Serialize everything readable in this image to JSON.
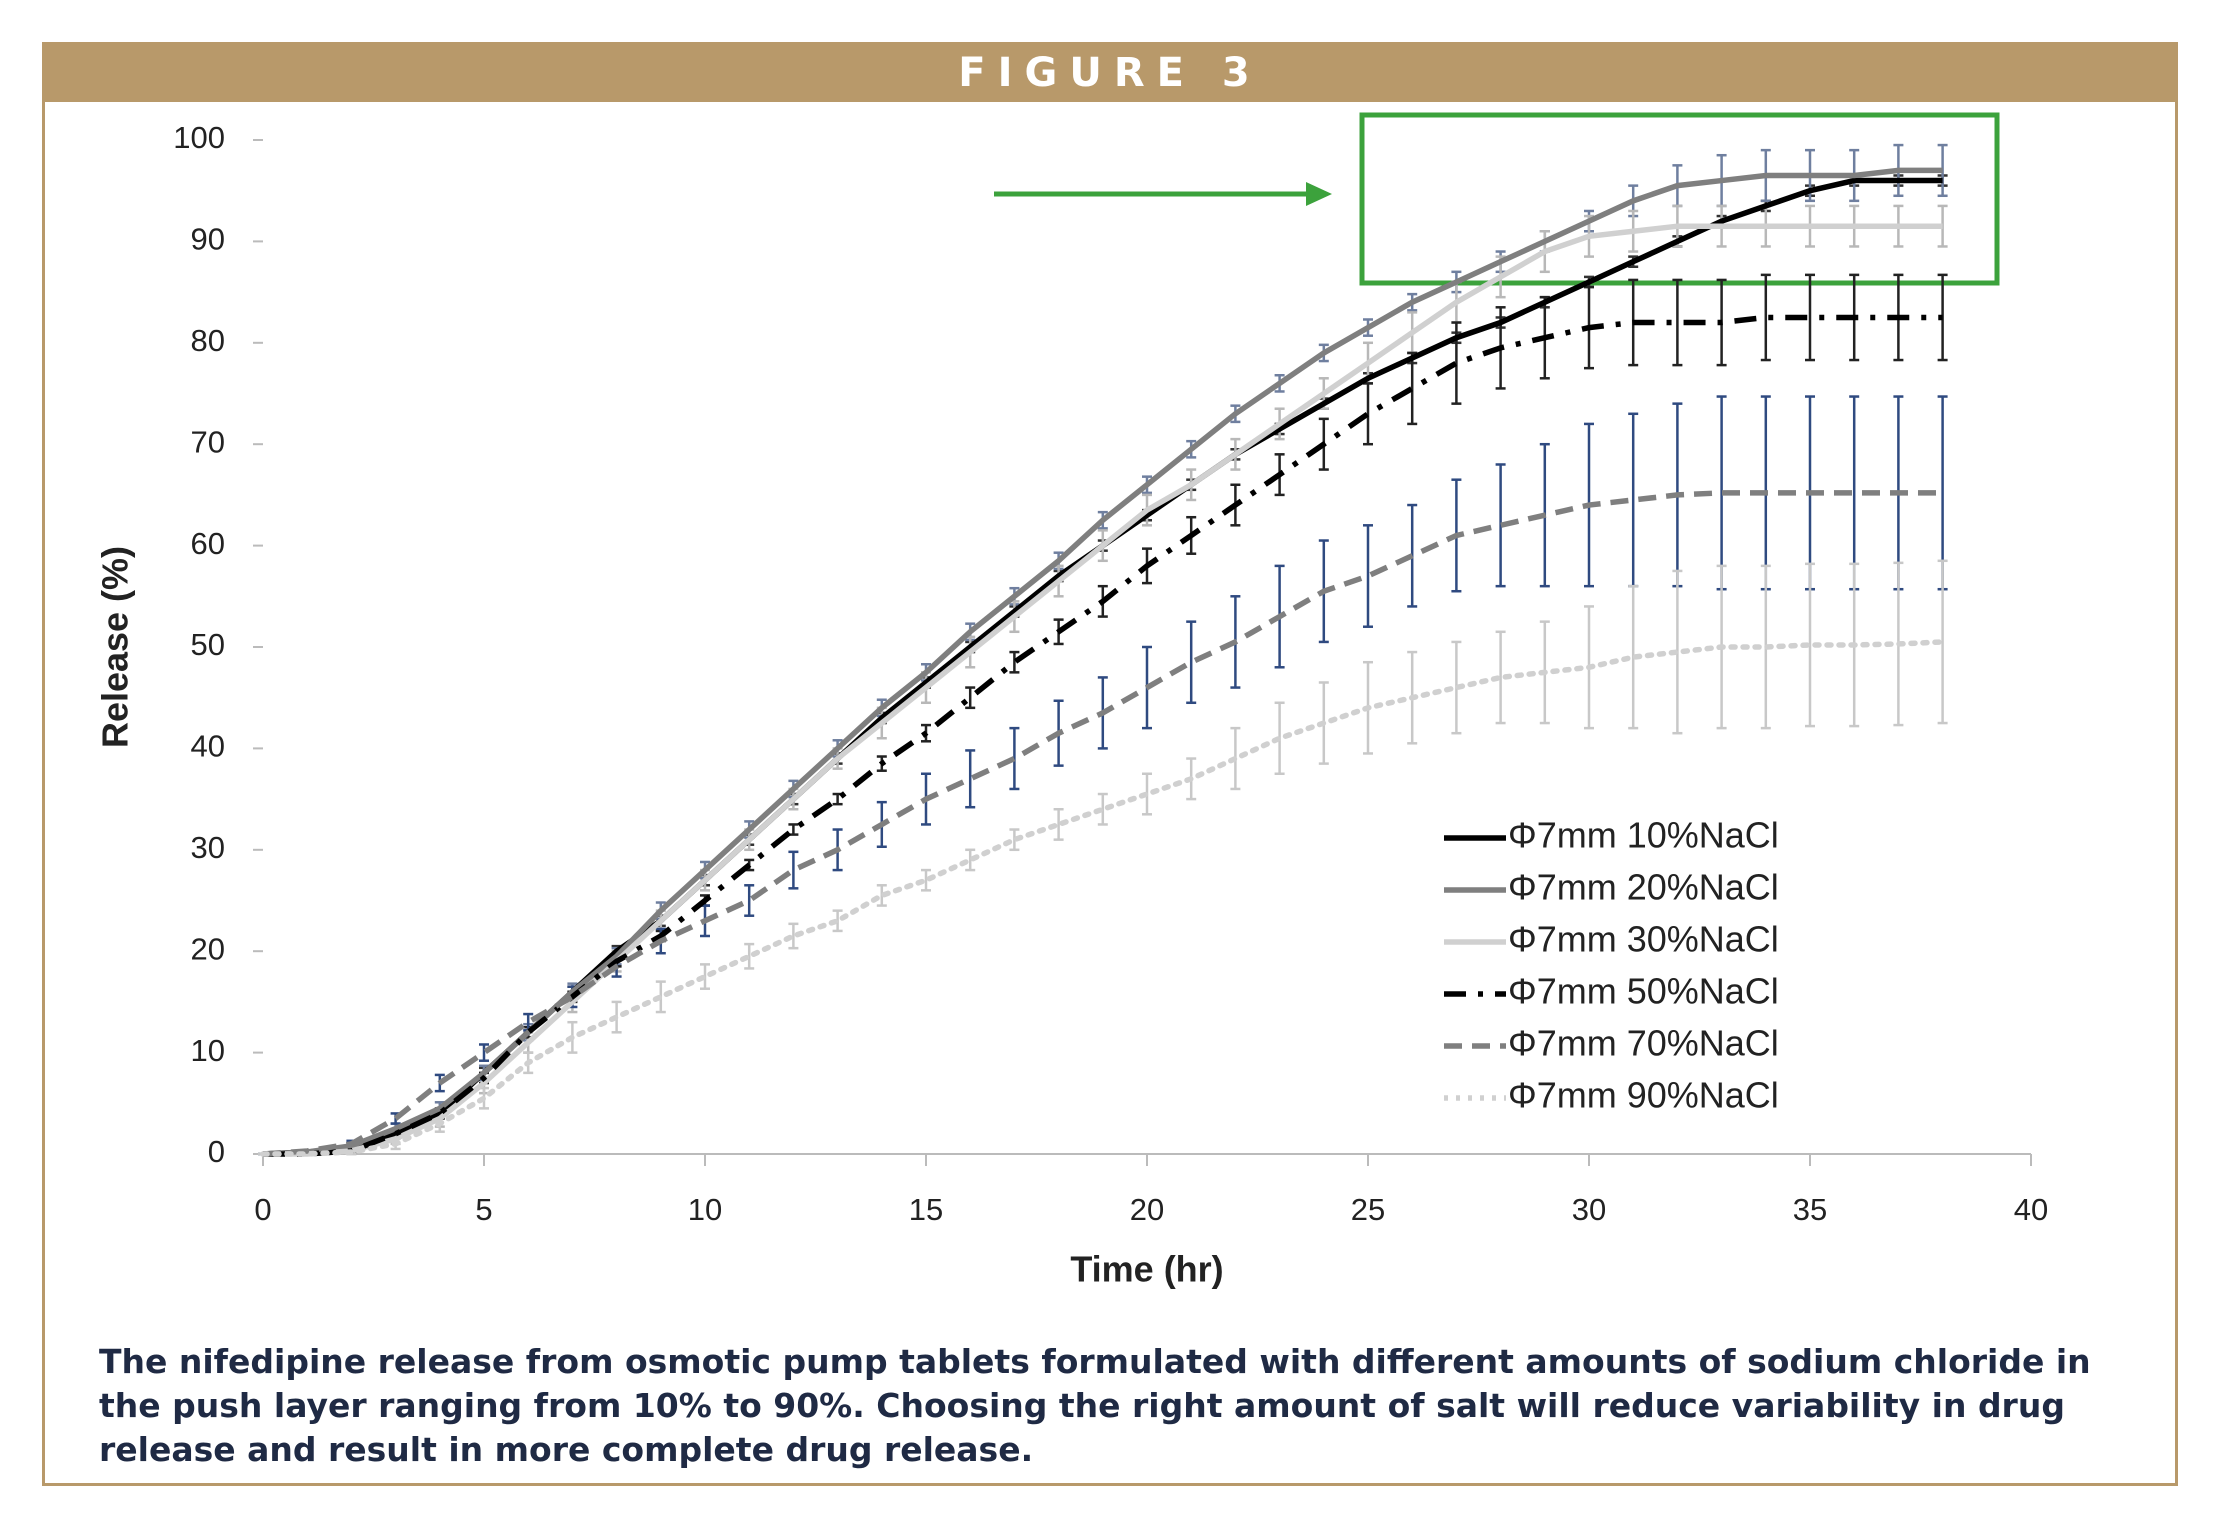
{
  "figure_label": "FIGURE 3",
  "caption": "The nifedipine release from osmotic pump tablets formulated with different amounts of sodium chloride in the push layer ranging from 10% to 90%. Choosing the right amount of salt will reduce variability in drug release and result in more complete drug release.",
  "chart_data": {
    "type": "line",
    "x_label": "Time (hr)",
    "y_label": "Release (%)",
    "x": [
      0,
      1,
      2,
      3,
      4,
      5,
      6,
      7,
      8,
      9,
      10,
      11,
      12,
      13,
      14,
      15,
      16,
      17,
      18,
      19,
      20,
      21,
      22,
      23,
      24,
      25,
      26,
      27,
      28,
      29,
      30,
      31,
      32,
      33,
      34,
      35,
      36,
      37,
      38
    ],
    "xlim": [
      0,
      40
    ],
    "xticks": [
      0,
      5,
      10,
      15,
      20,
      25,
      30,
      35,
      40
    ],
    "ylim": [
      0,
      100
    ],
    "yticks": [
      0,
      10,
      20,
      30,
      40,
      50,
      60,
      70,
      80,
      90,
      100
    ],
    "grid": false,
    "legend": "lower right",
    "series": [
      {
        "name": "Φ7mm 10%NaCl",
        "color": "#000000",
        "error_color": "#333333",
        "dash": "solid",
        "values": [
          0,
          0.2,
          0.5,
          2,
          4,
          8,
          12,
          16,
          20,
          23,
          27,
          31,
          35,
          39,
          43,
          46.5,
          50,
          53.5,
          57,
          60,
          63,
          66,
          69,
          71.5,
          74,
          76.5,
          78.5,
          80.5,
          82,
          84,
          86,
          88,
          90,
          92,
          93.5,
          95,
          96,
          96,
          96
        ],
        "errors": [
          0,
          0,
          0.2,
          0.3,
          0.4,
          0.5,
          0.5,
          0.5,
          0.5,
          0.5,
          0.5,
          0.5,
          0.5,
          0.5,
          0.5,
          0.5,
          0.5,
          0.5,
          0.5,
          0.5,
          0.5,
          0.5,
          0.5,
          0.5,
          0.5,
          0.5,
          0.5,
          0.5,
          0.5,
          0.5,
          0.5,
          0.5,
          0.5,
          0.5,
          0.5,
          0.5,
          0.5,
          0.5,
          0.5
        ]
      },
      {
        "name": "Φ7mm 20%NaCl",
        "color": "#7f7f7f",
        "error_color": "#6f7f9f",
        "dash": "solid",
        "values": [
          0,
          0.2,
          0.8,
          2.5,
          4.5,
          8,
          12,
          16,
          19.5,
          24,
          28,
          32,
          36,
          40,
          44,
          47.5,
          51.5,
          55,
          58.5,
          62.5,
          66,
          69.5,
          73,
          76,
          79,
          81.5,
          84,
          86,
          88,
          90,
          92,
          94,
          95.5,
          96,
          96.5,
          96.5,
          96.5,
          97,
          97
        ],
        "errors": [
          0,
          0,
          0.3,
          0.5,
          0.6,
          0.7,
          0.8,
          0.8,
          0.8,
          0.8,
          0.8,
          0.8,
          0.8,
          0.8,
          0.8,
          0.8,
          0.8,
          0.8,
          0.8,
          0.8,
          0.8,
          0.8,
          0.8,
          0.8,
          0.8,
          0.8,
          0.8,
          1,
          1,
          1,
          1,
          1.5,
          2,
          2.5,
          2.5,
          2.5,
          2.5,
          2.5,
          2.5
        ]
      },
      {
        "name": "Φ7mm 30%NaCl",
        "color": "#d0d0d0",
        "error_color": "#b8b8b8",
        "dash": "solid",
        "values": [
          0,
          0,
          0.3,
          1.5,
          3.5,
          7,
          11,
          15,
          19,
          23,
          27,
          31,
          35,
          39,
          42.5,
          46,
          49.5,
          53,
          56.5,
          60,
          63.5,
          66,
          69,
          72,
          75,
          78,
          81,
          84,
          86.5,
          89,
          90.5,
          91,
          91.5,
          91.5,
          91.5,
          91.5,
          91.5,
          91.5,
          91.5
        ],
        "errors": [
          0,
          0,
          0.3,
          0.5,
          0.8,
          1,
          1,
          1,
          1,
          1,
          1,
          1,
          1,
          1,
          1.5,
          1.5,
          1.5,
          1.5,
          1.5,
          1.5,
          1.5,
          1.5,
          1.5,
          1.5,
          1.5,
          2,
          2,
          2,
          2,
          2,
          2,
          2,
          2,
          2,
          2,
          2,
          2,
          2,
          2
        ]
      },
      {
        "name": "Φ7mm 50%NaCl",
        "color": "#000000",
        "error_color": "#222222",
        "dash": "dashdot",
        "values": [
          0,
          0,
          0.3,
          2,
          4,
          7.5,
          12,
          15.5,
          19,
          21.5,
          25,
          28.5,
          32,
          35,
          38.5,
          41.5,
          45,
          48.5,
          51.5,
          54.5,
          58,
          61,
          64,
          67,
          70,
          73,
          75.5,
          78,
          79.5,
          80.5,
          81.5,
          82,
          82,
          82,
          82.5,
          82.5,
          82.5,
          82.5,
          82.5
        ],
        "errors": [
          0,
          0,
          0.2,
          0.3,
          0.5,
          0.5,
          0.5,
          0.5,
          0.5,
          0.5,
          0.5,
          0.5,
          0.5,
          0.5,
          0.7,
          0.8,
          1,
          1,
          1.2,
          1.5,
          1.7,
          1.8,
          2,
          2,
          2.5,
          3,
          3.5,
          4,
          4,
          4,
          4,
          4.2,
          4.2,
          4.2,
          4.2,
          4.2,
          4.2,
          4.2,
          4.2
        ]
      },
      {
        "name": "Φ7mm 70%NaCl",
        "color": "#7f7f7f",
        "error_color": "#2f4a80",
        "dash": "dashed",
        "values": [
          0,
          0.3,
          1,
          3.5,
          7,
          10,
          13,
          15.5,
          18.5,
          21,
          23,
          25,
          28,
          30,
          32.5,
          35,
          37,
          39,
          41.5,
          43.5,
          46,
          48.5,
          50.5,
          53,
          55.5,
          57,
          59,
          61,
          62,
          63,
          64,
          64.5,
          65,
          65.2,
          65.2,
          65.2,
          65.2,
          65.2,
          65.2
        ],
        "errors": [
          0,
          0,
          0.3,
          0.5,
          0.8,
          0.8,
          0.8,
          1,
          1,
          1.2,
          1.5,
          1.5,
          1.8,
          2,
          2.2,
          2.5,
          2.8,
          3,
          3.2,
          3.5,
          4,
          4,
          4.5,
          5,
          5,
          5,
          5,
          5.5,
          6,
          7,
          8,
          8.5,
          9,
          9.5,
          9.5,
          9.5,
          9.5,
          9.5,
          9.5
        ]
      },
      {
        "name": "Φ7mm 90%NaCl",
        "color": "#d0d0d0",
        "error_color": "#c8c8c8",
        "dash": "dotted",
        "values": [
          0,
          0,
          0.2,
          1,
          3,
          5.5,
          9,
          11.5,
          13.5,
          15.5,
          17.5,
          19.5,
          21.5,
          23,
          25.5,
          27,
          29,
          31,
          32.5,
          34,
          35.5,
          37,
          39,
          41,
          42.5,
          44,
          45,
          46,
          47,
          47.5,
          48,
          49,
          49.5,
          50,
          50,
          50.2,
          50.2,
          50.3,
          50.5
        ],
        "errors": [
          0,
          0,
          0.2,
          0.5,
          0.8,
          1,
          1,
          1.5,
          1.5,
          1.5,
          1.2,
          1.2,
          1.2,
          1,
          1,
          1,
          1,
          1,
          1.5,
          1.5,
          2,
          2,
          3,
          3.5,
          4,
          4.5,
          4.5,
          4.5,
          4.5,
          5,
          6,
          7,
          8,
          8,
          8,
          8,
          8,
          8,
          8
        ]
      }
    ]
  }
}
